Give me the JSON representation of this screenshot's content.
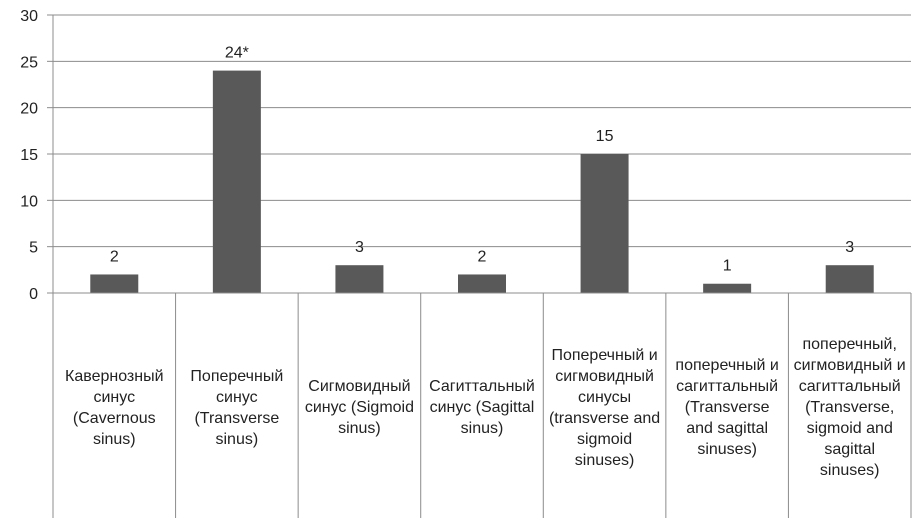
{
  "chart_data": {
    "type": "bar",
    "title": "",
    "xlabel": "",
    "ylabel": "",
    "ylim": [
      0,
      30
    ],
    "yticks": [
      0,
      5,
      10,
      15,
      20,
      25,
      30
    ],
    "grid": true,
    "bar_color": "#595959",
    "categories": [
      "Кавернозный синус (Cavernous sinus)",
      "Поперечный синус (Transverse sinus)",
      "Сигмовидный синус (Sigmoid sinus)",
      "Сагиттальный синус (Sagittal sinus)",
      "Поперечный и сигмовидный синусы (transverse and sigmoid sinuses)",
      "поперечный и сагиттальный (Transverse and sagittal sinuses)",
      "поперечный, сигмовидный и сагиттальный (Transverse, sigmoid and sagittal sinuses)"
    ],
    "values": [
      2,
      24,
      3,
      2,
      15,
      1,
      3
    ],
    "data_labels": [
      "2",
      "24*",
      "3",
      "2",
      "15",
      "1",
      "3"
    ]
  }
}
